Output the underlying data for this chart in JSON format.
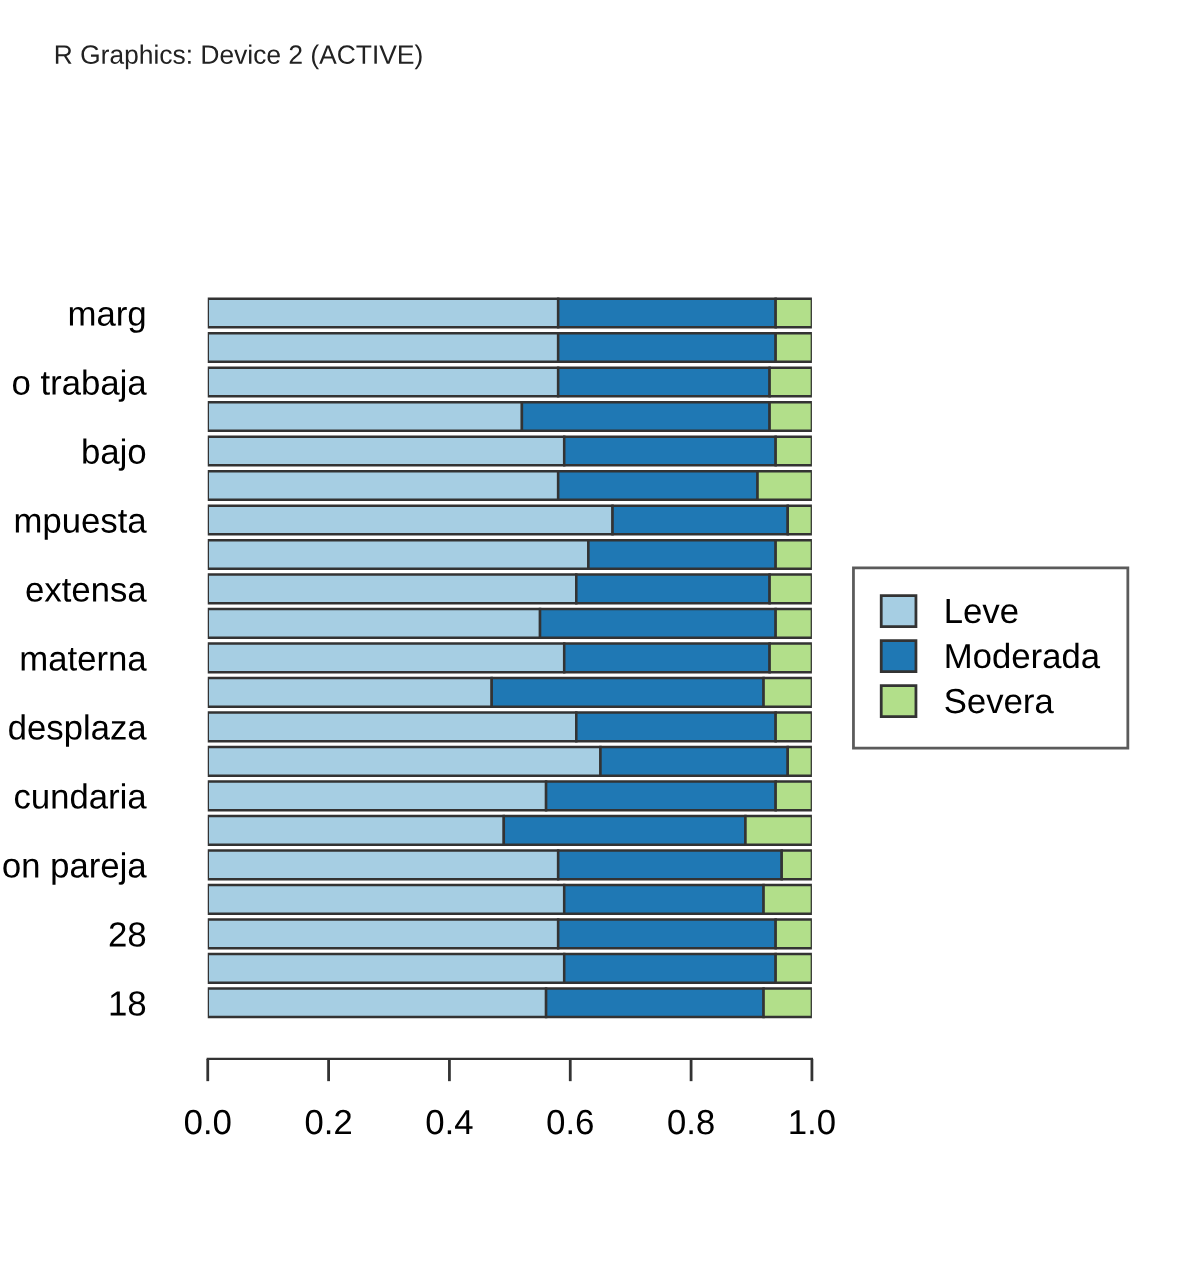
{
  "chart_data": {
    "type": "bar",
    "orientation": "horizontal",
    "stacked": true,
    "categories": [
      "marg",
      null,
      "o trabaja",
      null,
      "bajo",
      null,
      "mpuesta",
      null,
      "extensa",
      null,
      "materna",
      null,
      "desplaza",
      null,
      "cundaria",
      null,
      "on pareja",
      null,
      "28",
      null,
      "18"
    ],
    "series": [
      {
        "name": "Leve",
        "color": "#a6cee3",
        "values": [
          0.58,
          0.58,
          0.58,
          0.52,
          0.59,
          0.58,
          0.67,
          0.63,
          0.61,
          0.55,
          0.59,
          0.47,
          0.61,
          0.65,
          0.56,
          0.49,
          0.58,
          0.59,
          0.58,
          0.59,
          0.56
        ]
      },
      {
        "name": "Moderada",
        "color": "#1f78b4",
        "values": [
          0.36,
          0.36,
          0.35,
          0.41,
          0.35,
          0.33,
          0.29,
          0.31,
          0.32,
          0.39,
          0.34,
          0.45,
          0.33,
          0.31,
          0.38,
          0.4,
          0.37,
          0.33,
          0.36,
          0.35,
          0.36
        ]
      },
      {
        "name": "Severa",
        "color": "#b2df8a",
        "values": [
          0.06,
          0.06,
          0.07,
          0.07,
          0.06,
          0.09,
          0.04,
          0.06,
          0.07,
          0.06,
          0.07,
          0.08,
          0.06,
          0.04,
          0.06,
          0.11,
          0.05,
          0.08,
          0.06,
          0.06,
          0.08
        ]
      }
    ],
    "xlim": [
      0,
      1
    ],
    "xticks": [
      {
        "value": 0,
        "label": "0.0"
      },
      {
        "value": 0.2,
        "label": "0.2"
      },
      {
        "value": 0.4,
        "label": "0.4"
      },
      {
        "value": 0.6,
        "label": "0.6"
      },
      {
        "value": 0.8,
        "label": "0.8"
      },
      {
        "value": 1,
        "label": "1.0"
      }
    ],
    "legend": "right",
    "grid": false,
    "annotations": [
      "R Graphics: Device 2 (ACTIVE)"
    ]
  }
}
